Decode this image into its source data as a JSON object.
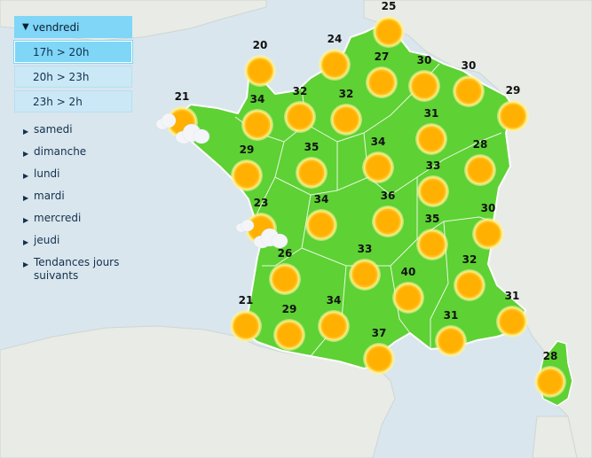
{
  "menu": {
    "day": "vendredi",
    "slots": [
      "17h > 20h",
      "20h > 23h",
      "23h > 2h"
    ],
    "active_slot": 0,
    "other_days": [
      "samedi",
      "dimanche",
      "lundi",
      "mardi",
      "mercredi",
      "jeudi",
      "Tendances jours suivants"
    ]
  },
  "icons": {
    "expanded": "triangle-down-icon",
    "collapsed": "triangle-right-icon",
    "weather": "sun-icon",
    "cloud": "cloud-icon"
  },
  "colors": {
    "sea": "#d9e6ee",
    "land_outside": "#e8ebe6",
    "france": "#5ed134",
    "menu_active": "#7fd6f7",
    "menu_slot": "#cbe8f6",
    "sun": "#ffb000"
  },
  "cities": [
    {
      "id": "lille",
      "temp": "25"
    },
    {
      "id": "cherbourg",
      "temp": "20"
    },
    {
      "id": "rouen",
      "temp": "24"
    },
    {
      "id": "amiens",
      "temp": "27"
    },
    {
      "id": "reims",
      "temp": "30"
    },
    {
      "id": "metz",
      "temp": "30"
    },
    {
      "id": "strasbourg",
      "temp": "29"
    },
    {
      "id": "brest",
      "temp": "21"
    },
    {
      "id": "rennes",
      "temp": "34"
    },
    {
      "id": "caen",
      "temp": "32"
    },
    {
      "id": "paris",
      "temp": "32"
    },
    {
      "id": "troyes",
      "temp": "31"
    },
    {
      "id": "nantes",
      "temp": "29"
    },
    {
      "id": "tours",
      "temp": "35"
    },
    {
      "id": "orleans",
      "temp": "34"
    },
    {
      "id": "dijon",
      "temp": "33"
    },
    {
      "id": "mulhouse",
      "temp": "28"
    },
    {
      "id": "la-rochelle",
      "temp": "23"
    },
    {
      "id": "limoges",
      "temp": "34"
    },
    {
      "id": "clermont",
      "temp": "36"
    },
    {
      "id": "lyon",
      "temp": "35"
    },
    {
      "id": "annecy",
      "temp": "30"
    },
    {
      "id": "bordeaux",
      "temp": "26"
    },
    {
      "id": "brive",
      "temp": "33"
    },
    {
      "id": "grenoble",
      "temp": "32"
    },
    {
      "id": "nimes",
      "temp": "40"
    },
    {
      "id": "biarritz",
      "temp": "21"
    },
    {
      "id": "pau",
      "temp": "29"
    },
    {
      "id": "toulouse",
      "temp": "34"
    },
    {
      "id": "perpignan",
      "temp": "37"
    },
    {
      "id": "marseille",
      "temp": "31"
    },
    {
      "id": "nice",
      "temp": "31"
    },
    {
      "id": "ajaccio",
      "temp": "28"
    }
  ]
}
